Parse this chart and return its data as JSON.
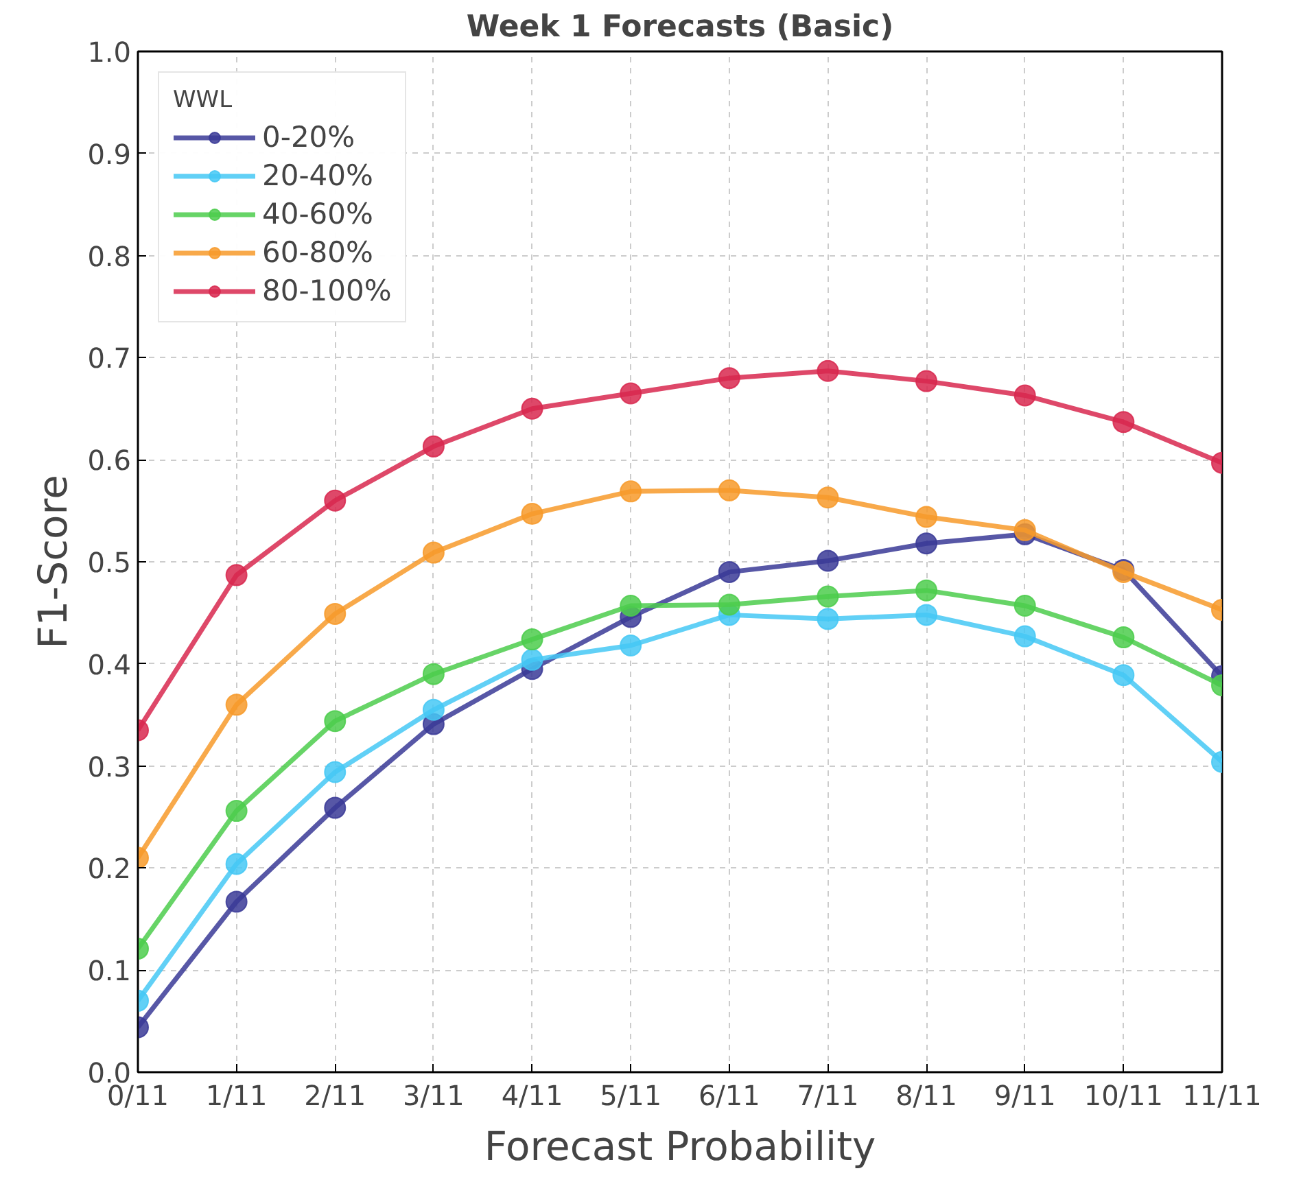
{
  "chart_data": {
    "type": "line",
    "title": "Week 1 Forecasts (Basic)",
    "xlabel": "Forecast Probability",
    "ylabel": "F1-Score",
    "categories": [
      "0/11",
      "1/11",
      "2/11",
      "3/11",
      "4/11",
      "5/11",
      "6/11",
      "7/11",
      "8/11",
      "9/11",
      "10/11",
      "11/11"
    ],
    "ylim": [
      0,
      1
    ],
    "yticks": [
      {
        "value": 0,
        "label": "0.0"
      },
      0.1,
      0.2,
      0.3,
      0.4,
      0.5,
      0.6,
      0.7,
      0.8,
      0.9,
      {
        "value": 1,
        "label": "1.0"
      }
    ],
    "legend_title": "WWL",
    "legend": "top left",
    "grid": true,
    "marker": "circle",
    "line_style": "solid",
    "series": [
      {
        "name": "0-20%",
        "color": "#3a3a96",
        "values": [
          0.044,
          0.167,
          0.259,
          0.341,
          0.395,
          0.446,
          0.49,
          0.501,
          0.518,
          0.527,
          0.492,
          0.388
        ]
      },
      {
        "name": "20-40%",
        "color": "#45c8f5",
        "values": [
          0.07,
          0.204,
          0.294,
          0.355,
          0.404,
          0.418,
          0.448,
          0.444,
          0.448,
          0.427,
          0.389,
          0.304
        ]
      },
      {
        "name": "40-60%",
        "color": "#4ccc4c",
        "values": [
          0.121,
          0.256,
          0.344,
          0.39,
          0.424,
          0.457,
          0.458,
          0.466,
          0.472,
          0.457,
          0.426,
          0.379
        ]
      },
      {
        "name": "60-80%",
        "color": "#f79a2a",
        "values": [
          0.21,
          0.36,
          0.449,
          0.509,
          0.547,
          0.569,
          0.57,
          0.563,
          0.544,
          0.531,
          0.49,
          0.453
        ]
      },
      {
        "name": "80-100%",
        "color": "#d8284f",
        "values": [
          0.335,
          0.487,
          0.56,
          0.613,
          0.65,
          0.665,
          0.68,
          0.687,
          0.677,
          0.663,
          0.637,
          0.597
        ]
      }
    ]
  }
}
